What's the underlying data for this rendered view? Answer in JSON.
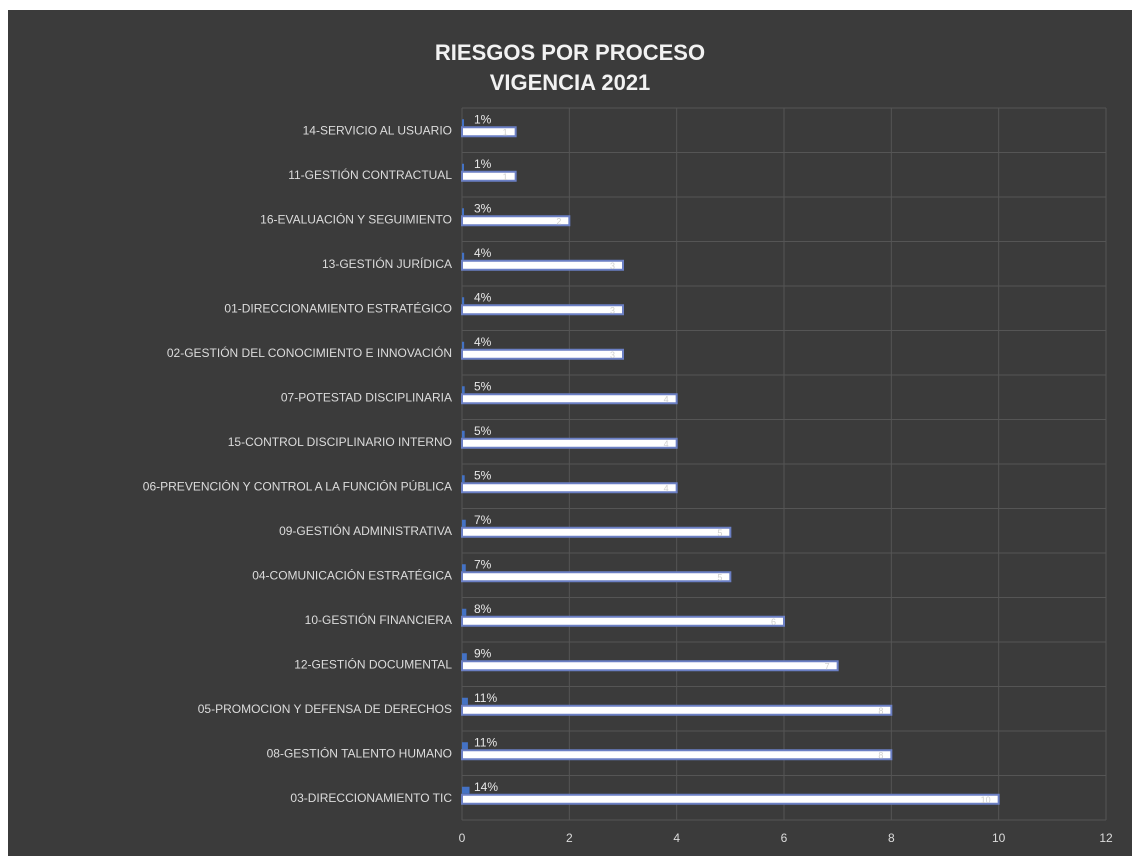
{
  "chart_data": {
    "type": "bar",
    "orientation": "horizontal",
    "title_lines": [
      "RIESGOS POR PROCESO",
      "VIGENCIA 2021"
    ],
    "categories": [
      "14-SERVICIO AL USUARIO",
      "11-GESTIÓN CONTRACTUAL",
      "16-EVALUACIÓN Y SEGUIMIENTO",
      "13-GESTIÓN JURÍDICA",
      "01-DIRECCIONAMIENTO ESTRATÉGICO",
      "02-GESTIÓN DEL CONOCIMIENTO E INNOVACIÓN",
      "07-POTESTAD DISCIPLINARIA",
      "15-CONTROL DISCIPLINARIO INTERNO",
      "06-PREVENCIÓN Y CONTROL A LA FUNCIÓN PÚBLICA",
      "09-GESTIÓN ADMINISTRATIVA",
      "04-COMUNICACIÓN ESTRATÉGICA",
      "10-GESTIÓN FINANCIERA",
      "12-GESTIÓN DOCUMENTAL",
      "05-PROMOCION Y DEFENSA DE DERECHOS",
      "08-GESTIÓN TALENTO HUMANO",
      "03-DIRECCIONAMIENTO TIC"
    ],
    "series": [
      {
        "values": [
          1,
          1,
          2,
          3,
          3,
          3,
          4,
          4,
          4,
          5,
          5,
          6,
          7,
          8,
          8,
          10
        ]
      },
      {
        "values": [
          0.01,
          0.01,
          0.03,
          0.04,
          0.04,
          0.04,
          0.05,
          0.05,
          0.05,
          0.07,
          0.07,
          0.08,
          0.09,
          0.11,
          0.11,
          0.14
        ]
      }
    ],
    "value_labels": [
      "1",
      "1",
      "2",
      "3",
      "3",
      "3",
      "4",
      "4",
      "4",
      "5",
      "5",
      "6",
      "7",
      "8",
      "8",
      "10"
    ],
    "percent_labels": [
      "1%",
      "1%",
      "3%",
      "4%",
      "4%",
      "4%",
      "5%",
      "5%",
      "5%",
      "7%",
      "7%",
      "8%",
      "9%",
      "11%",
      "11%",
      "14%"
    ],
    "x_ticks": [
      "0",
      "2",
      "4",
      "6",
      "8",
      "10",
      "12"
    ],
    "xlim": [
      0,
      12
    ],
    "grid": true,
    "colors": {
      "background": "#3b3b3b",
      "bar_fill": "#ffffff",
      "bar_border": "#6b7fc4",
      "small_bar": "#4472c4",
      "grid": "#555555",
      "text": "#dcdcdc"
    }
  }
}
